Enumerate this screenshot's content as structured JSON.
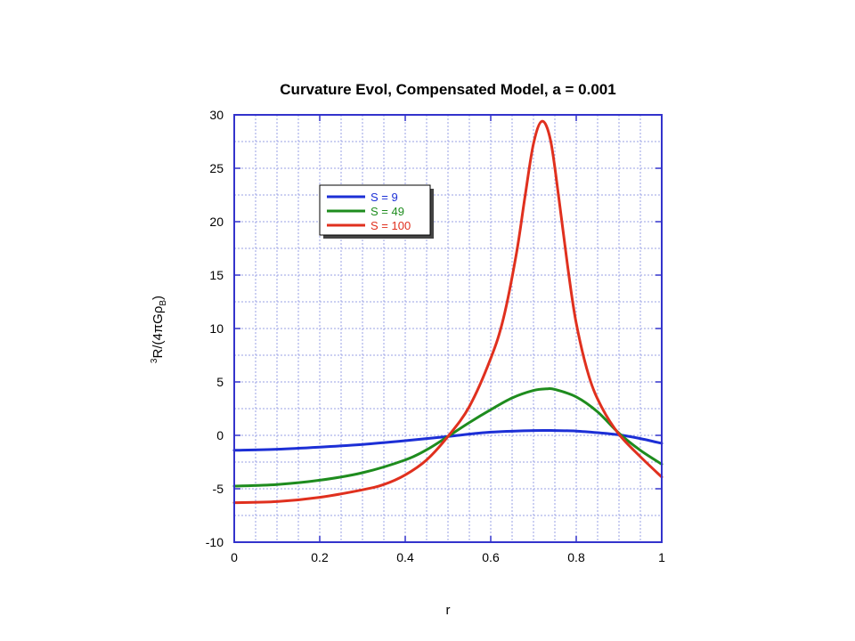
{
  "chart_data": {
    "type": "line",
    "title": "Curvature Evol, Compensated Model, a = 0.001",
    "xlabel": "r",
    "ylabel_main": "R/(4πGρ",
    "ylabel_sup": "3",
    "ylabel_sub": "B",
    "ylabel_close": ")",
    "xlim": [
      0,
      1
    ],
    "ylim": [
      -10,
      30
    ],
    "grid": true,
    "legend_position": "top-left",
    "x_ticks": [
      0,
      0.2,
      0.4,
      0.6,
      0.8,
      1
    ],
    "x_tick_labels": [
      "0",
      "0.2",
      "0.4",
      "0.6",
      "0.8",
      "1"
    ],
    "y_ticks": [
      -10,
      -5,
      0,
      5,
      10,
      15,
      20,
      25,
      30
    ],
    "y_tick_labels": [
      "-10",
      "-5",
      "0",
      "5",
      "10",
      "15",
      "20",
      "25",
      "30"
    ],
    "frame_color": "#3333cc",
    "grid_color": "#9aa0e6",
    "series": [
      {
        "name": "S = 9",
        "color": "#1c2fd6",
        "x": [
          0,
          0.1,
          0.2,
          0.3,
          0.4,
          0.5,
          0.6,
          0.7,
          0.75,
          0.8,
          0.85,
          0.9,
          0.95,
          1.0
        ],
        "y": [
          -1.4,
          -1.3,
          -1.1,
          -0.85,
          -0.5,
          -0.1,
          0.3,
          0.45,
          0.45,
          0.4,
          0.25,
          0.05,
          -0.3,
          -0.75
        ]
      },
      {
        "name": "S = 49",
        "color": "#1e8c1e",
        "x": [
          0,
          0.1,
          0.2,
          0.3,
          0.4,
          0.45,
          0.5,
          0.55,
          0.6,
          0.65,
          0.7,
          0.73,
          0.75,
          0.8,
          0.85,
          0.9,
          0.95,
          1.0
        ],
        "y": [
          -4.75,
          -4.6,
          -4.2,
          -3.5,
          -2.3,
          -1.35,
          -0.1,
          1.2,
          2.4,
          3.5,
          4.2,
          4.35,
          4.3,
          3.6,
          2.2,
          0.2,
          -1.4,
          -2.7
        ]
      },
      {
        "name": "S = 100",
        "color": "#e0301e",
        "x": [
          0,
          0.1,
          0.2,
          0.3,
          0.35,
          0.4,
          0.45,
          0.5,
          0.55,
          0.6,
          0.63,
          0.66,
          0.68,
          0.7,
          0.72,
          0.74,
          0.76,
          0.78,
          0.8,
          0.83,
          0.86,
          0.9,
          0.95,
          1.0
        ],
        "y": [
          -6.3,
          -6.2,
          -5.8,
          -5.1,
          -4.6,
          -3.7,
          -2.3,
          -0.1,
          2.7,
          7.2,
          11.0,
          17.0,
          22.3,
          27.3,
          29.4,
          27.6,
          22.0,
          15.8,
          10.5,
          5.5,
          2.6,
          0.1,
          -2.0,
          -3.9
        ]
      }
    ]
  }
}
